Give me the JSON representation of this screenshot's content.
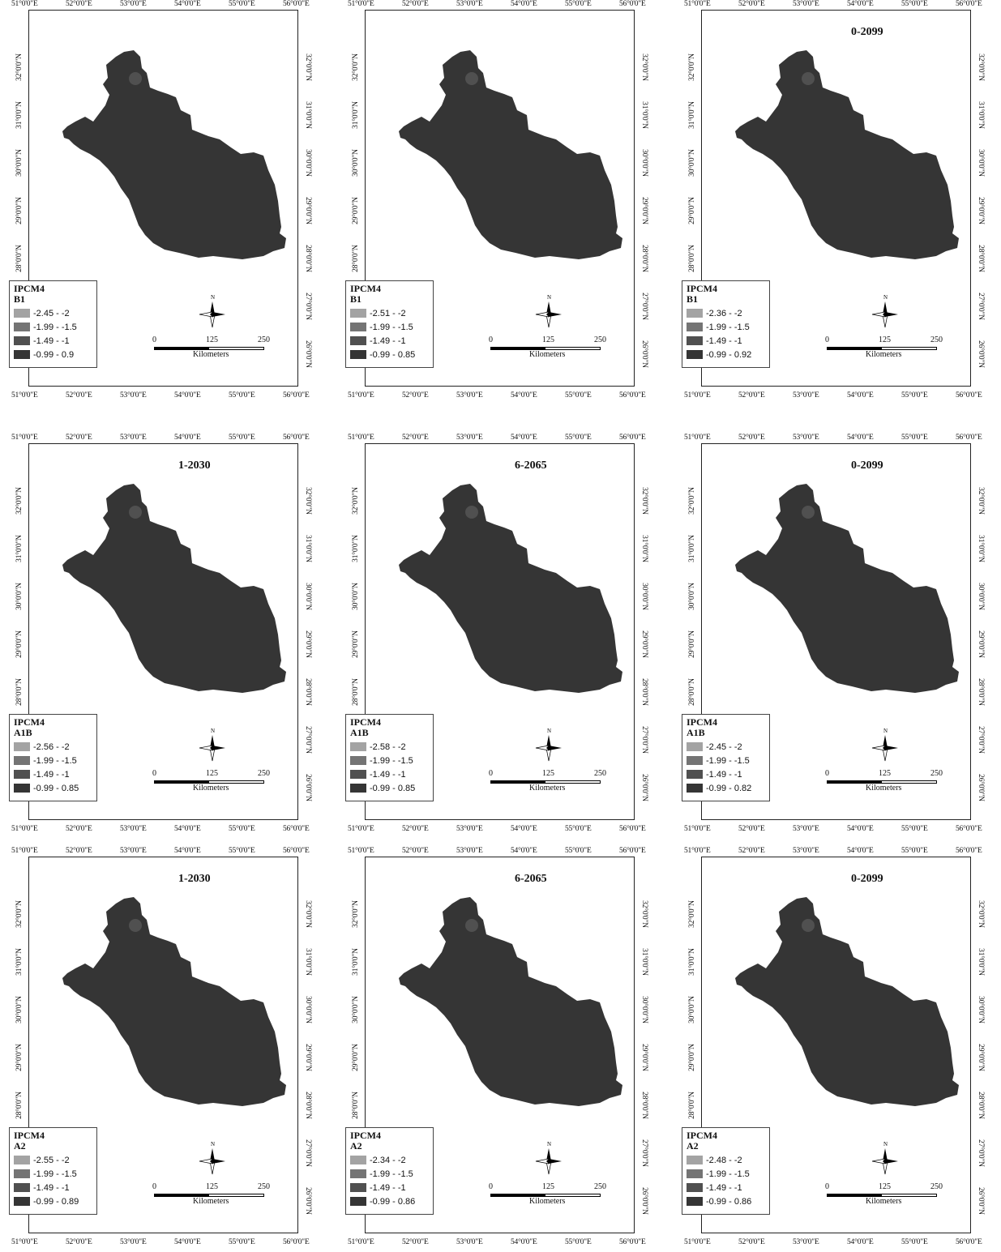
{
  "axes": {
    "lon_ticks": [
      "51°0'0\"E",
      "52°0'0\"E",
      "53°0'0\"E",
      "54°0'0\"E",
      "55°0'0\"E",
      "56°0'0\"E"
    ],
    "lat_ticks": [
      "32°0'0\"N",
      "31°0'0\"N",
      "30°0'0\"N",
      "29°0'0\"N",
      "28°0'0\"N",
      "27°0'0\"N",
      "26°0'0\"N"
    ]
  },
  "scale_bar": {
    "labels": [
      "0",
      "125",
      "250"
    ],
    "unit": "Kilometers"
  },
  "compass": {
    "label": "N",
    "icon": "north-arrow-icon"
  },
  "map_colors": {
    "base": "#353535",
    "c1": "#a3a3a3",
    "c2": "#747474",
    "c3": "#505050"
  },
  "panels": [
    {
      "period": "",
      "model": "IPCM4",
      "scenario": "B1",
      "legend": [
        "-2.45 - -2",
        "-1.99 - -1.5",
        "-1.49 - -1",
        "-0.99 - 0.9"
      ]
    },
    {
      "period": "",
      "model": "IPCM4",
      "scenario": "B1",
      "legend": [
        "-2.51 - -2",
        "-1.99 - -1.5",
        "-1.49 - -1",
        "-0.99 - 0.85"
      ]
    },
    {
      "period": "0-2099",
      "model": "IPCM4",
      "scenario": "B1",
      "legend": [
        "-2.36 - -2",
        "-1.99 - -1.5",
        "-1.49 - -1",
        "-0.99 - 0.92"
      ]
    },
    {
      "period": "1-2030",
      "model": "IPCM4",
      "scenario": "A1B",
      "legend": [
        "-2.56 - -2",
        "-1.99 - -1.5",
        "-1.49 - -1",
        "-0.99 - 0.85"
      ]
    },
    {
      "period": "6-2065",
      "model": "IPCM4",
      "scenario": "A1B",
      "legend": [
        "-2.58 - -2",
        "-1.99 - -1.5",
        "-1.49 - -1",
        "-0.99 - 0.85"
      ]
    },
    {
      "period": "0-2099",
      "model": "IPCM4",
      "scenario": "A1B",
      "legend": [
        "-2.45 - -2",
        "-1.99 - -1.5",
        "-1.49 - -1",
        "-0.99 - 0.82"
      ]
    },
    {
      "period": "1-2030",
      "model": "IPCM4",
      "scenario": "A2",
      "legend": [
        "-2.55 - -2",
        "-1.99 - -1.5",
        "-1.49 - -1",
        "-0.99 - 0.89"
      ]
    },
    {
      "period": "6-2065",
      "model": "IPCM4",
      "scenario": "A2",
      "legend": [
        "-2.34 - -2",
        "-1.99 - -1.5",
        "-1.49 - -1",
        "-0.99 - 0.86"
      ]
    },
    {
      "period": "0-2099",
      "model": "IPCM4",
      "scenario": "A2",
      "legend": [
        "-2.48 - -2",
        "-1.99 - -1.5",
        "-1.49 - -1",
        "-0.99 - 0.86"
      ]
    }
  ]
}
